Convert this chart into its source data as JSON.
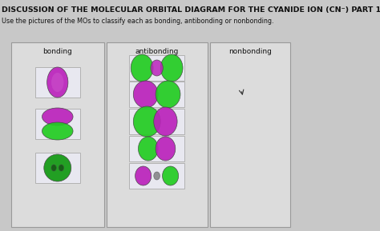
{
  "title": "DISCUSSION OF THE MOLECULAR ORBITAL DIAGRAM FOR THE CYANIDE ION (CN⁻) PART 1",
  "subtitle": "Use the pictures of the MOs to classify each as bonding, antibonding or nonbonding.",
  "col_labels": [
    "bonding",
    "antibonding",
    "nonbonding"
  ],
  "bg_color": "#c8c8c8",
  "panel_bg": "#e8e8e8",
  "thumb_bg": "#e0e0e8",
  "title_color": "#111111",
  "green": "#22cc22",
  "purple": "#bb22bb",
  "dark_green": "#119911"
}
